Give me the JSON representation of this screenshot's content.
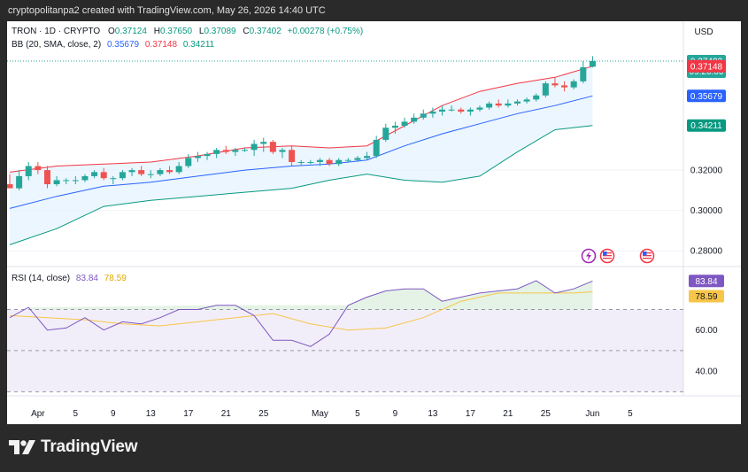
{
  "watermark": "cryptopolitanpa2 created with TradingView.com, May 26, 2026 14:40 UTC",
  "brand": {
    "name": "TradingView"
  },
  "colors": {
    "up": "#26a69a",
    "down": "#ef5350",
    "bb_upper": "#f23645",
    "bb_basis": "#2962ff",
    "bb_lower": "#089981",
    "rsi": "#7e57c2",
    "rsi_ma": "#f7c548"
  },
  "chart_data": [
    {
      "type": "candlestick",
      "legend": {
        "symbol": "TRON · 1D · CRYPTO",
        "o_label": "O",
        "o": "0.37124",
        "h_label": "H",
        "h": "0.37650",
        "l_label": "L",
        "l": "0.37089",
        "c_label": "C",
        "c": "0.37402",
        "change": "+0.00278 (+0.75%)",
        "bb_label": "BB (20, SMA, close, 2)",
        "bb_basis": "0.35679",
        "bb_upper": "0.37148",
        "bb_lower": "0.34211"
      },
      "currency": "USD",
      "ylim": [
        0.27,
        0.385
      ],
      "yticks": [
        0.28,
        0.3,
        0.32
      ],
      "ytick_labels": [
        "0.28000",
        "0.30000",
        "0.32000"
      ],
      "price_tags": [
        {
          "value": 0.37402,
          "label": "0.37402",
          "sublabel": "09:20:00",
          "color": "#26a69a"
        },
        {
          "value": 0.37148,
          "label": "0.37148",
          "color": "#f23645"
        },
        {
          "value": 0.35679,
          "label": "0.35679",
          "color": "#2962ff"
        },
        {
          "value": 0.34211,
          "label": "0.34211",
          "color": "#089981"
        }
      ],
      "x_axis": {
        "labels": [
          "Apr",
          "5",
          "9",
          "13",
          "17",
          "21",
          "25",
          "May",
          "5",
          "9",
          "13",
          "17",
          "21",
          "25",
          "Jun",
          "5"
        ],
        "days": [
          3,
          7,
          11,
          15,
          19,
          23,
          27,
          33,
          37,
          41,
          45,
          49,
          53,
          57,
          62,
          66
        ]
      },
      "candles": [
        {
          "day": 0,
          "o": 0.313,
          "h": 0.318,
          "l": 0.311,
          "c": 0.311
        },
        {
          "day": 1,
          "o": 0.311,
          "h": 0.32,
          "l": 0.31,
          "c": 0.317
        },
        {
          "day": 2,
          "o": 0.317,
          "h": 0.324,
          "l": 0.315,
          "c": 0.322
        },
        {
          "day": 3,
          "o": 0.322,
          "h": 0.324,
          "l": 0.318,
          "c": 0.32
        },
        {
          "day": 4,
          "o": 0.32,
          "h": 0.322,
          "l": 0.311,
          "c": 0.313
        },
        {
          "day": 5,
          "o": 0.313,
          "h": 0.317,
          "l": 0.312,
          "c": 0.315
        },
        {
          "day": 6,
          "o": 0.315,
          "h": 0.316,
          "l": 0.313,
          "c": 0.315
        },
        {
          "day": 7,
          "o": 0.315,
          "h": 0.317,
          "l": 0.313,
          "c": 0.315
        },
        {
          "day": 8,
          "o": 0.315,
          "h": 0.318,
          "l": 0.314,
          "c": 0.317
        },
        {
          "day": 9,
          "o": 0.317,
          "h": 0.32,
          "l": 0.316,
          "c": 0.319
        },
        {
          "day": 10,
          "o": 0.319,
          "h": 0.321,
          "l": 0.315,
          "c": 0.316
        },
        {
          "day": 11,
          "o": 0.316,
          "h": 0.317,
          "l": 0.313,
          "c": 0.316
        },
        {
          "day": 12,
          "o": 0.316,
          "h": 0.32,
          "l": 0.315,
          "c": 0.319
        },
        {
          "day": 13,
          "o": 0.319,
          "h": 0.321,
          "l": 0.317,
          "c": 0.32
        },
        {
          "day": 14,
          "o": 0.32,
          "h": 0.322,
          "l": 0.317,
          "c": 0.318
        },
        {
          "day": 15,
          "o": 0.318,
          "h": 0.32,
          "l": 0.316,
          "c": 0.318
        },
        {
          "day": 16,
          "o": 0.318,
          "h": 0.321,
          "l": 0.317,
          "c": 0.32
        },
        {
          "day": 17,
          "o": 0.32,
          "h": 0.322,
          "l": 0.318,
          "c": 0.319
        },
        {
          "day": 18,
          "o": 0.319,
          "h": 0.324,
          "l": 0.318,
          "c": 0.322
        },
        {
          "day": 19,
          "o": 0.322,
          "h": 0.328,
          "l": 0.321,
          "c": 0.326
        },
        {
          "day": 20,
          "o": 0.326,
          "h": 0.329,
          "l": 0.324,
          "c": 0.327
        },
        {
          "day": 21,
          "o": 0.327,
          "h": 0.329,
          "l": 0.325,
          "c": 0.328
        },
        {
          "day": 22,
          "o": 0.328,
          "h": 0.331,
          "l": 0.326,
          "c": 0.33
        },
        {
          "day": 23,
          "o": 0.33,
          "h": 0.332,
          "l": 0.328,
          "c": 0.329
        },
        {
          "day": 24,
          "o": 0.329,
          "h": 0.331,
          "l": 0.327,
          "c": 0.33
        },
        {
          "day": 25,
          "o": 0.33,
          "h": 0.331,
          "l": 0.329,
          "c": 0.33
        },
        {
          "day": 26,
          "o": 0.33,
          "h": 0.335,
          "l": 0.327,
          "c": 0.333
        },
        {
          "day": 27,
          "o": 0.333,
          "h": 0.336,
          "l": 0.329,
          "c": 0.334
        },
        {
          "day": 28,
          "o": 0.334,
          "h": 0.335,
          "l": 0.328,
          "c": 0.329
        },
        {
          "day": 29,
          "o": 0.329,
          "h": 0.331,
          "l": 0.326,
          "c": 0.33
        },
        {
          "day": 30,
          "o": 0.33,
          "h": 0.332,
          "l": 0.322,
          "c": 0.324
        },
        {
          "day": 31,
          "o": 0.324,
          "h": 0.325,
          "l": 0.322,
          "c": 0.324
        },
        {
          "day": 32,
          "o": 0.324,
          "h": 0.325,
          "l": 0.323,
          "c": 0.324
        },
        {
          "day": 33,
          "o": 0.324,
          "h": 0.326,
          "l": 0.322,
          "c": 0.325
        },
        {
          "day": 34,
          "o": 0.325,
          "h": 0.326,
          "l": 0.322,
          "c": 0.323
        },
        {
          "day": 35,
          "o": 0.323,
          "h": 0.326,
          "l": 0.322,
          "c": 0.325
        },
        {
          "day": 36,
          "o": 0.325,
          "h": 0.326,
          "l": 0.324,
          "c": 0.325
        },
        {
          "day": 37,
          "o": 0.325,
          "h": 0.327,
          "l": 0.324,
          "c": 0.326
        },
        {
          "day": 38,
          "o": 0.326,
          "h": 0.329,
          "l": 0.325,
          "c": 0.327
        },
        {
          "day": 39,
          "o": 0.327,
          "h": 0.337,
          "l": 0.326,
          "c": 0.335
        },
        {
          "day": 40,
          "o": 0.335,
          "h": 0.343,
          "l": 0.334,
          "c": 0.341
        },
        {
          "day": 41,
          "o": 0.341,
          "h": 0.344,
          "l": 0.338,
          "c": 0.342
        },
        {
          "day": 42,
          "o": 0.342,
          "h": 0.346,
          "l": 0.341,
          "c": 0.344
        },
        {
          "day": 43,
          "o": 0.344,
          "h": 0.348,
          "l": 0.343,
          "c": 0.346
        },
        {
          "day": 44,
          "o": 0.346,
          "h": 0.35,
          "l": 0.345,
          "c": 0.348
        },
        {
          "day": 45,
          "o": 0.348,
          "h": 0.351,
          "l": 0.346,
          "c": 0.349
        },
        {
          "day": 46,
          "o": 0.349,
          "h": 0.352,
          "l": 0.347,
          "c": 0.35
        },
        {
          "day": 47,
          "o": 0.35,
          "h": 0.352,
          "l": 0.349,
          "c": 0.35
        },
        {
          "day": 48,
          "o": 0.35,
          "h": 0.351,
          "l": 0.348,
          "c": 0.349
        },
        {
          "day": 49,
          "o": 0.349,
          "h": 0.351,
          "l": 0.347,
          "c": 0.35
        },
        {
          "day": 50,
          "o": 0.35,
          "h": 0.352,
          "l": 0.349,
          "c": 0.351
        },
        {
          "day": 51,
          "o": 0.351,
          "h": 0.354,
          "l": 0.35,
          "c": 0.353
        },
        {
          "day": 52,
          "o": 0.353,
          "h": 0.355,
          "l": 0.351,
          "c": 0.352
        },
        {
          "day": 53,
          "o": 0.352,
          "h": 0.355,
          "l": 0.351,
          "c": 0.353
        },
        {
          "day": 54,
          "o": 0.353,
          "h": 0.355,
          "l": 0.352,
          "c": 0.354
        },
        {
          "day": 55,
          "o": 0.354,
          "h": 0.356,
          "l": 0.353,
          "c": 0.355
        },
        {
          "day": 56,
          "o": 0.355,
          "h": 0.358,
          "l": 0.354,
          "c": 0.357
        },
        {
          "day": 57,
          "o": 0.357,
          "h": 0.364,
          "l": 0.356,
          "c": 0.363
        },
        {
          "day": 58,
          "o": 0.363,
          "h": 0.366,
          "l": 0.361,
          "c": 0.362
        },
        {
          "day": 59,
          "o": 0.362,
          "h": 0.364,
          "l": 0.359,
          "c": 0.361
        },
        {
          "day": 60,
          "o": 0.361,
          "h": 0.365,
          "l": 0.36,
          "c": 0.364
        },
        {
          "day": 61,
          "o": 0.364,
          "h": 0.374,
          "l": 0.363,
          "c": 0.371
        },
        {
          "day": 62,
          "o": 0.37124,
          "h": 0.3765,
          "l": 0.37089,
          "c": 0.37402
        }
      ],
      "bb": {
        "days": [
          0,
          5,
          10,
          15,
          20,
          25,
          30,
          34,
          38,
          42,
          46,
          50,
          54,
          58,
          62
        ],
        "upper": [
          0.319,
          0.322,
          0.323,
          0.324,
          0.327,
          0.331,
          0.332,
          0.331,
          0.332,
          0.342,
          0.352,
          0.359,
          0.363,
          0.366,
          0.37148
        ],
        "basis": [
          0.301,
          0.307,
          0.312,
          0.314,
          0.317,
          0.32,
          0.322,
          0.323,
          0.325,
          0.332,
          0.338,
          0.343,
          0.348,
          0.352,
          0.35679
        ],
        "lower": [
          0.283,
          0.291,
          0.302,
          0.305,
          0.307,
          0.309,
          0.311,
          0.315,
          0.318,
          0.315,
          0.314,
          0.317,
          0.329,
          0.34,
          0.34211
        ]
      }
    },
    {
      "type": "line",
      "legend": {
        "label": "RSI (14, close)",
        "rsi": "83.84",
        "ma": "78.59"
      },
      "ylim": [
        28,
        90
      ],
      "yticks": [
        40,
        60
      ],
      "ytick_labels": [
        "40.00",
        "60.00"
      ],
      "band": [
        30,
        70
      ],
      "midline": 50,
      "value_tags": [
        {
          "value": 83.84,
          "label": "83.84",
          "color": "#7e57c2"
        },
        {
          "value": 78.59,
          "label": "78.59",
          "color": "#f7c548"
        }
      ],
      "series": [
        {
          "days": [
            0,
            2,
            4,
            6,
            8,
            10,
            12,
            14,
            16,
            18,
            20,
            22,
            24,
            26,
            28,
            30,
            32,
            34,
            36,
            38,
            40,
            42,
            44,
            46,
            48,
            50,
            52,
            54,
            56,
            58,
            60,
            62
          ],
          "values": [
            66,
            71,
            60,
            61,
            66,
            60,
            64,
            63,
            66,
            70,
            70,
            72,
            72,
            67,
            55,
            55,
            52,
            58,
            72,
            76,
            79,
            80,
            80,
            74,
            76,
            78,
            79,
            80,
            84,
            78,
            80,
            83.84
          ]
        },
        {
          "days": [
            0,
            4,
            8,
            12,
            16,
            20,
            24,
            28,
            32,
            36,
            40,
            44,
            48,
            52,
            56,
            60,
            62
          ],
          "values": [
            67,
            66,
            65,
            63,
            62,
            64,
            66,
            68,
            63,
            60,
            61,
            66,
            74,
            78,
            78,
            78,
            78.59
          ]
        }
      ]
    }
  ]
}
